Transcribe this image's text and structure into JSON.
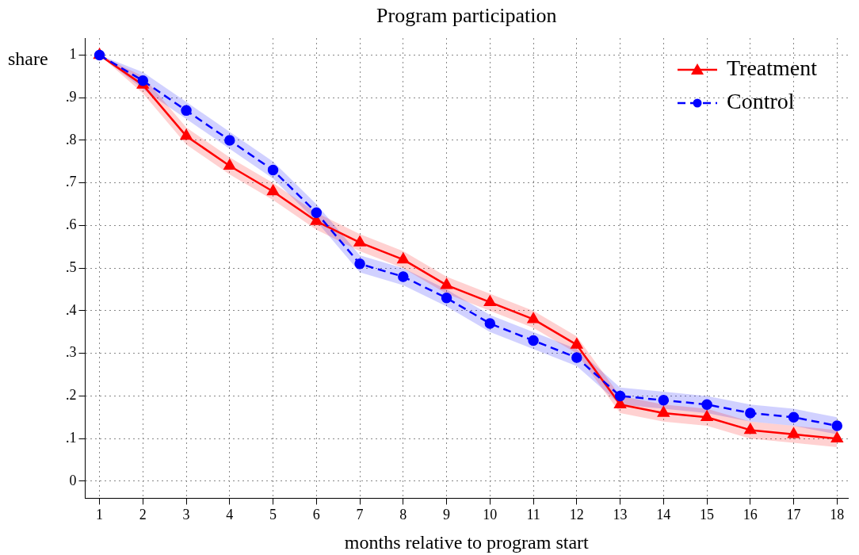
{
  "chart_data": {
    "type": "line",
    "title": "Program participation",
    "xlabel": "months relative to program start",
    "ylabel": "share",
    "x": [
      1,
      2,
      3,
      4,
      5,
      6,
      7,
      8,
      9,
      10,
      11,
      12,
      13,
      14,
      15,
      16,
      17,
      18
    ],
    "series": [
      {
        "name": "Treatment",
        "color": "#ff0000",
        "marker": "triangle",
        "line_style": "solid",
        "values": [
          1.0,
          0.93,
          0.81,
          0.74,
          0.68,
          0.61,
          0.56,
          0.52,
          0.46,
          0.42,
          0.38,
          0.32,
          0.18,
          0.16,
          0.15,
          0.12,
          0.11,
          0.1
        ],
        "lower": [
          1.0,
          0.91,
          0.79,
          0.72,
          0.66,
          0.59,
          0.54,
          0.5,
          0.44,
          0.4,
          0.36,
          0.3,
          0.16,
          0.14,
          0.13,
          0.1,
          0.09,
          0.08
        ],
        "upper": [
          1.0,
          0.95,
          0.83,
          0.76,
          0.7,
          0.63,
          0.58,
          0.54,
          0.48,
          0.44,
          0.4,
          0.34,
          0.2,
          0.18,
          0.17,
          0.14,
          0.13,
          0.12
        ]
      },
      {
        "name": "Control",
        "color": "#0000ff",
        "marker": "circle",
        "line_style": "dashed",
        "values": [
          1.0,
          0.94,
          0.87,
          0.8,
          0.73,
          0.63,
          0.51,
          0.48,
          0.43,
          0.37,
          0.33,
          0.29,
          0.2,
          0.19,
          0.18,
          0.16,
          0.15,
          0.13
        ],
        "lower": [
          1.0,
          0.92,
          0.85,
          0.78,
          0.71,
          0.61,
          0.49,
          0.46,
          0.41,
          0.35,
          0.31,
          0.27,
          0.18,
          0.17,
          0.16,
          0.14,
          0.13,
          0.11
        ],
        "upper": [
          1.0,
          0.96,
          0.89,
          0.82,
          0.75,
          0.65,
          0.53,
          0.5,
          0.45,
          0.39,
          0.35,
          0.31,
          0.22,
          0.21,
          0.2,
          0.18,
          0.17,
          0.15
        ]
      }
    ],
    "xlim": [
      0.67,
      18.25
    ],
    "xticks": [
      1,
      2,
      3,
      4,
      5,
      6,
      7,
      8,
      9,
      10,
      11,
      12,
      13,
      14,
      15,
      16,
      17,
      18
    ],
    "ylim": [
      -0.04,
      1.04
    ],
    "yticks": [
      0,
      {
        "value": 0.1,
        "label": ".1"
      },
      {
        "value": 0.2,
        "label": ".2"
      },
      {
        "value": 0.3,
        "label": ".3"
      },
      {
        "value": 0.4,
        "label": ".4"
      },
      {
        "value": 0.5,
        "label": ".5"
      },
      {
        "value": 0.6,
        "label": ".6"
      },
      {
        "value": 0.7,
        "label": ".7"
      },
      {
        "value": 0.8,
        "label": ".8"
      },
      {
        "value": 0.9,
        "label": ".9"
      },
      1
    ],
    "grid": true,
    "legend": "top right"
  }
}
